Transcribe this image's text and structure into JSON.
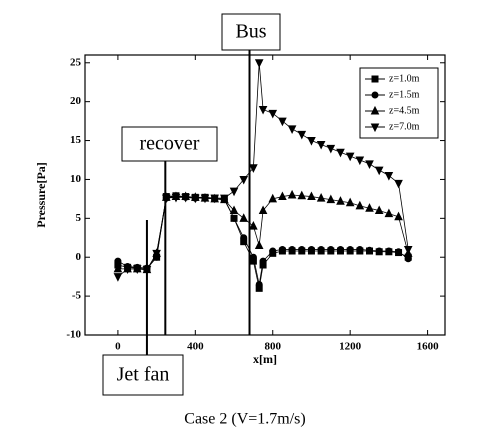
{
  "chart_data": {
    "type": "line",
    "xlabel": "x[m]",
    "ylabel": "Pressure[Pa]",
    "caption": "Case 2 (V=1.7m/s)",
    "x": [
      0,
      50,
      100,
      150,
      200,
      250,
      300,
      350,
      400,
      450,
      500,
      550,
      600,
      650,
      700,
      730,
      750,
      800,
      850,
      900,
      950,
      1000,
      1050,
      1100,
      1150,
      1200,
      1250,
      1300,
      1350,
      1400,
      1450,
      1500
    ],
    "series": [
      {
        "name": "z=1.0m",
        "color": "#000000",
        "marker": "square",
        "values": [
          -1,
          -1.3,
          -1.4,
          -1.5,
          0,
          7.8,
          7.9,
          7.8,
          7.7,
          7.7,
          7.6,
          7.5,
          5,
          2,
          -0.5,
          -4,
          -1,
          0.5,
          0.8,
          0.8,
          0.8,
          0.8,
          0.8,
          0.8,
          0.8,
          0.8,
          0.8,
          0.8,
          0.7,
          0.7,
          0.6,
          0
        ]
      },
      {
        "name": "z=1.5m",
        "color": "#000000",
        "marker": "circle",
        "values": [
          -0.5,
          -1.2,
          -1.3,
          -1.4,
          0,
          7.6,
          7.8,
          7.7,
          7.6,
          7.6,
          7.5,
          7.4,
          5,
          2.5,
          0,
          -3.5,
          -0.5,
          0.8,
          1,
          1,
          1,
          1,
          1,
          1,
          1,
          1,
          1,
          0.9,
          0.8,
          0.8,
          0.7,
          -0.2
        ]
      },
      {
        "name": "z=4.5m",
        "color": "#000000",
        "marker": "triangle-up",
        "values": [
          -1.5,
          -1.5,
          -1.5,
          -1.6,
          0.5,
          7.7,
          7.8,
          7.8,
          7.7,
          7.6,
          7.5,
          7.4,
          6,
          5,
          4,
          1.5,
          6,
          7.5,
          7.8,
          8,
          7.9,
          7.8,
          7.6,
          7.4,
          7.2,
          7,
          6.6,
          6.3,
          6,
          5.6,
          5.2,
          0.5
        ]
      },
      {
        "name": "z=7.0m",
        "color": "#000000",
        "marker": "triangle-down",
        "values": [
          -2.5,
          -1.5,
          -1.5,
          -1.6,
          0.5,
          7.6,
          7.7,
          7.7,
          7.6,
          7.6,
          7.6,
          7.6,
          8.5,
          10,
          11.5,
          25,
          19,
          18.5,
          17.5,
          16.5,
          15.8,
          15,
          14.5,
          14,
          13.5,
          13,
          12.5,
          12,
          11.2,
          10.5,
          9.5,
          1
        ]
      }
    ],
    "xlim": [
      -170,
      1690
    ],
    "ylim": [
      -10,
      26
    ],
    "xticks": [
      0,
      400,
      800,
      1200,
      1600
    ],
    "yticks": [
      -10,
      -5,
      0,
      5,
      10,
      15,
      20,
      25
    ],
    "legend": "upper right",
    "annotations": [
      {
        "text": "Bus",
        "x": 680
      },
      {
        "text": "recover",
        "x": 245
      },
      {
        "text": "Jet fan",
        "x": 150
      }
    ]
  }
}
